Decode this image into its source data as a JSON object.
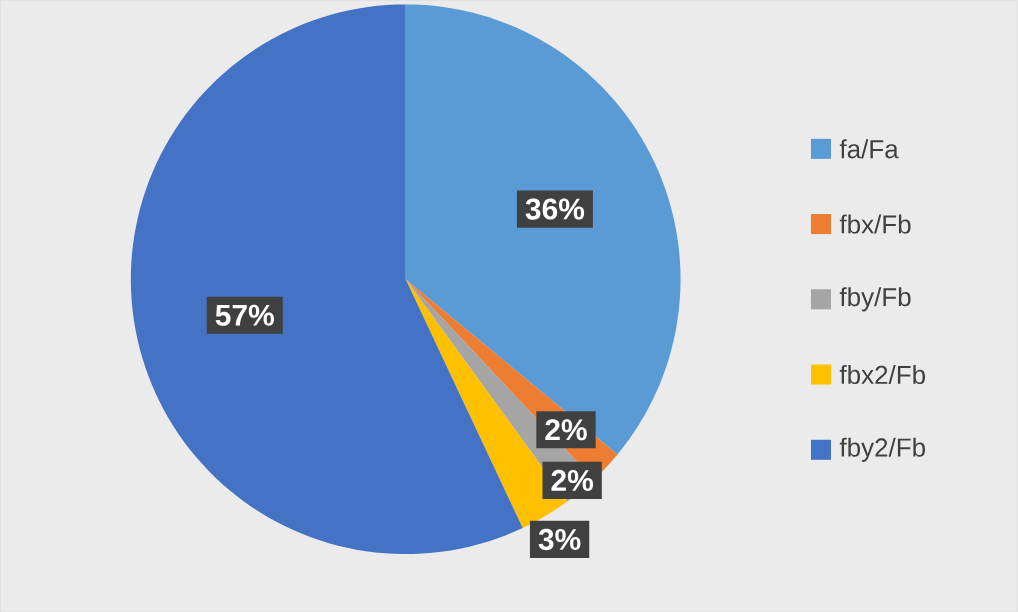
{
  "chart_data": {
    "type": "pie",
    "categories": [
      "fa/Fa",
      "fbx/Fb",
      "fby/Fb",
      "fbx2/Fb",
      "fby2/Fb"
    ],
    "values": [
      36,
      2,
      2,
      3,
      57
    ],
    "value_labels": [
      "36%",
      "2%",
      "2%",
      "3%",
      "57%"
    ],
    "colors": [
      "#5b9bd5",
      "#ed7d31",
      "#a5a5a5",
      "#ffc000",
      "#4472c4"
    ],
    "legend": "right"
  }
}
